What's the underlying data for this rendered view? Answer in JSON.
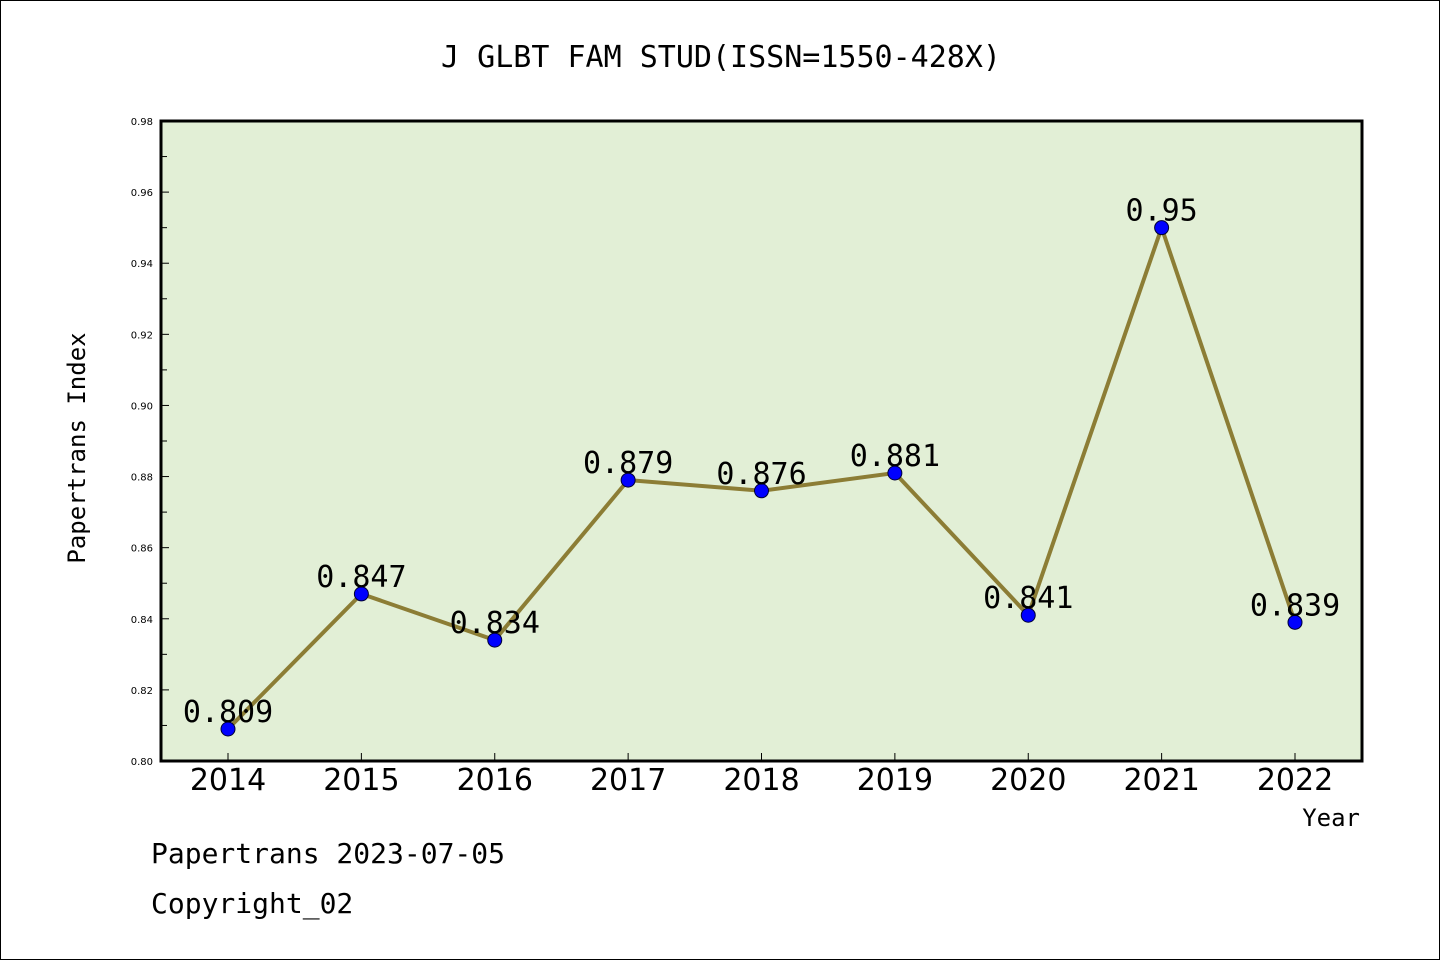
{
  "chart_data": {
    "type": "line",
    "title": "J GLBT FAM STUD(ISSN=1550-428X)",
    "xlabel": "Year",
    "ylabel": "Papertrans Index",
    "x": [
      "2014",
      "2015",
      "2016",
      "2017",
      "2018",
      "2019",
      "2020",
      "2021",
      "2022"
    ],
    "values": [
      0.809,
      0.847,
      0.834,
      0.879,
      0.876,
      0.881,
      0.841,
      0.95,
      0.839
    ],
    "data_labels": [
      "0.809",
      "0.847",
      "0.834",
      "0.879",
      "0.876",
      "0.881",
      "0.841",
      "0.95",
      "0.839"
    ],
    "ylim": [
      0.8,
      0.98
    ],
    "yticks": [
      "0.80",
      "0.82",
      "0.84",
      "0.86",
      "0.88",
      "0.90",
      "0.92",
      "0.94",
      "0.96",
      "0.98"
    ],
    "grid": false,
    "colors": {
      "line": "#8c7d35",
      "marker": "#0000ff",
      "plot_bg": "#e2efd6"
    }
  },
  "footer": {
    "date": "Papertrans 2023-07-05",
    "copyright": "Copyright_02"
  }
}
